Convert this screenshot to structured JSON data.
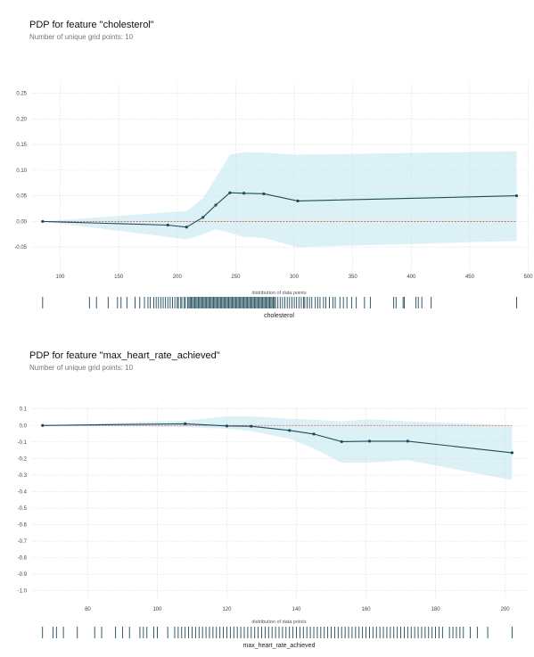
{
  "chart_data": [
    {
      "type": "line",
      "title": "PDP for feature \"cholesterol\"",
      "subtitle": "Number of unique grid points: 10",
      "xlabel": "distribution of data points",
      "rug_label": "cholesterol",
      "xlim": [
        76,
        498
      ],
      "ylim": [
        -0.1,
        0.27
      ],
      "xticks": [
        100,
        150,
        200,
        250,
        300,
        350,
        400,
        450,
        500
      ],
      "yticks": [
        -0.05,
        0.0,
        0.05,
        0.1,
        0.15,
        0.2,
        0.25
      ],
      "ytick_labels": [
        "-0.05",
        "0.00",
        "0.05",
        "0.10",
        "0.15",
        "0.20",
        "0.25"
      ],
      "series": [
        {
          "x": [
            85,
            192,
            208,
            222,
            233,
            245,
            257,
            274,
            303,
            490
          ],
          "y": [
            0.0,
            -0.007,
            -0.011,
            0.008,
            0.032,
            0.056,
            0.055,
            0.054,
            0.04,
            0.05
          ],
          "lower": [
            0.0,
            -0.03,
            -0.035,
            -0.025,
            -0.015,
            -0.022,
            -0.03,
            -0.032,
            -0.05,
            -0.038
          ],
          "upper": [
            0.0,
            0.018,
            0.02,
            0.045,
            0.085,
            0.13,
            0.135,
            0.134,
            0.13,
            0.137
          ]
        }
      ],
      "rug": [
        85,
        125,
        131,
        141,
        149,
        152,
        157,
        164,
        168,
        172,
        175,
        177,
        180,
        182,
        184,
        186,
        188,
        190,
        192,
        194,
        196,
        198,
        200,
        201,
        203,
        204,
        206,
        207,
        209,
        210,
        211,
        212,
        213,
        214,
        215,
        216,
        217,
        218,
        219,
        220,
        221,
        222,
        223,
        224,
        225,
        226,
        227,
        228,
        229,
        230,
        231,
        232,
        233,
        234,
        235,
        236,
        237,
        238,
        239,
        240,
        241,
        242,
        243,
        244,
        245,
        246,
        247,
        248,
        249,
        250,
        251,
        252,
        253,
        254,
        255,
        256,
        257,
        258,
        259,
        260,
        261,
        262,
        263,
        264,
        265,
        266,
        267,
        268,
        269,
        270,
        271,
        272,
        273,
        274,
        275,
        276,
        277,
        278,
        279,
        280,
        281,
        282,
        283,
        284,
        286,
        288,
        290,
        292,
        294,
        296,
        298,
        300,
        302,
        304,
        306,
        308,
        309,
        311,
        313,
        315,
        318,
        320,
        322,
        325,
        327,
        330,
        333,
        335,
        339,
        342,
        345,
        349,
        353,
        360,
        365,
        385,
        387,
        393,
        394,
        404,
        406,
        409,
        417,
        490
      ]
    },
    {
      "type": "line",
      "title": "PDP for feature \"max_heart_rate_achieved\"",
      "subtitle": "Number of unique grid points: 10",
      "xlabel": "distribution of data points",
      "rug_label": "max_heart_rate_achieved",
      "xlim": [
        64,
        206
      ],
      "ylim": [
        -1.05,
        0.12
      ],
      "xticks": [
        80,
        100,
        120,
        140,
        160,
        180,
        200
      ],
      "yticks": [
        -1.0,
        -0.9,
        -0.8,
        -0.7,
        -0.6,
        -0.5,
        -0.4,
        -0.3,
        -0.2,
        -0.1,
        0.0,
        0.1
      ],
      "ytick_labels": [
        "-1.0",
        "-0.9",
        "-0.8",
        "-0.7",
        "-0.6",
        "-0.5",
        "-0.4",
        "-0.3",
        "-0.2",
        "-0.1",
        "0.0",
        "0.1"
      ],
      "series": [
        {
          "x": [
            67,
            108,
            120,
            127,
            138,
            145,
            153,
            161,
            172,
            202
          ],
          "y": [
            0.0,
            0.01,
            -0.003,
            -0.005,
            -0.03,
            -0.052,
            -0.098,
            -0.095,
            -0.095,
            -0.165
          ],
          "lower": [
            0.0,
            -0.01,
            -0.02,
            -0.035,
            -0.08,
            -0.14,
            -0.225,
            -0.225,
            -0.21,
            -0.33
          ],
          "upper": [
            0.0,
            0.03,
            0.055,
            0.055,
            0.04,
            0.035,
            0.025,
            0.038,
            0.025,
            0.0
          ]
        }
      ],
      "rug": [
        67,
        70,
        71,
        73,
        77,
        82,
        84,
        88,
        90,
        92,
        95,
        96,
        97,
        99,
        100,
        103,
        105,
        106,
        107,
        108,
        109,
        110,
        111,
        112,
        113,
        114,
        115,
        116,
        117,
        118,
        119,
        120,
        121,
        122,
        123,
        124,
        125,
        126,
        127,
        128,
        129,
        130,
        131,
        132,
        133,
        134,
        135,
        136,
        137,
        138,
        139,
        140,
        141,
        142,
        143,
        144,
        145,
        146,
        147,
        148,
        149,
        150,
        151,
        152,
        153,
        154,
        155,
        156,
        157,
        158,
        159,
        160,
        161,
        162,
        163,
        164,
        165,
        166,
        167,
        168,
        169,
        170,
        171,
        172,
        173,
        174,
        175,
        176,
        177,
        178,
        179,
        180,
        181,
        182,
        184,
        185,
        186,
        187,
        188,
        190,
        192,
        195,
        202
      ]
    }
  ]
}
